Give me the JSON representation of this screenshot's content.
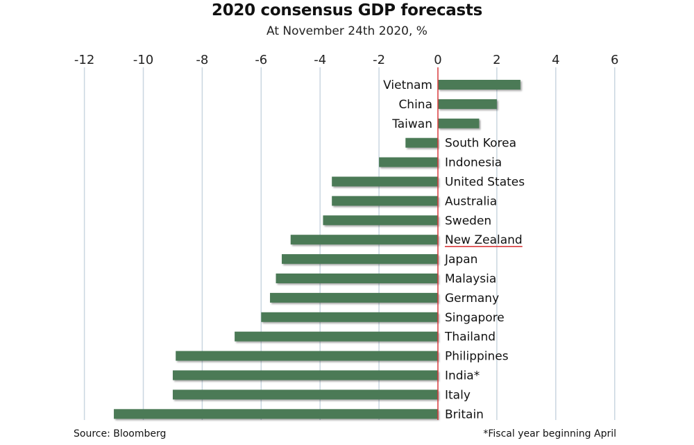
{
  "chart_data": {
    "type": "bar",
    "orientation": "horizontal",
    "title": "2020 consensus GDP forecasts",
    "subtitle": "At November 24th 2020, %",
    "xlabel": "",
    "ylabel": "",
    "xlim": [
      -12,
      6
    ],
    "ticks": [
      -12,
      -10,
      -8,
      -6,
      -4,
      -2,
      0,
      2,
      4,
      6
    ],
    "grid": true,
    "categories": [
      "Vietnam",
      "China",
      "Taiwan",
      "South Korea",
      "Indonesia",
      "United States",
      "Australia",
      "Sweden",
      "New Zealand",
      "Japan",
      "Malaysia",
      "Germany",
      "Singapore",
      "Thailand",
      "Philippines",
      "India*",
      "Italy",
      "Britain"
    ],
    "values": [
      2.8,
      2.0,
      1.4,
      -1.1,
      -2.0,
      -3.6,
      -3.6,
      -3.9,
      -5.0,
      -5.3,
      -5.5,
      -5.7,
      -6.0,
      -6.9,
      -8.9,
      -9.0,
      -9.0,
      -11.0
    ],
    "highlighted": "New Zealand",
    "source": "Source: Bloomberg",
    "footnote": "*Fiscal year beginning April",
    "colors": {
      "bar": "#4b7a57",
      "zero_line": "#d9393b",
      "grid": "#c9d6e0",
      "highlight_underline": "#d9393b"
    }
  }
}
